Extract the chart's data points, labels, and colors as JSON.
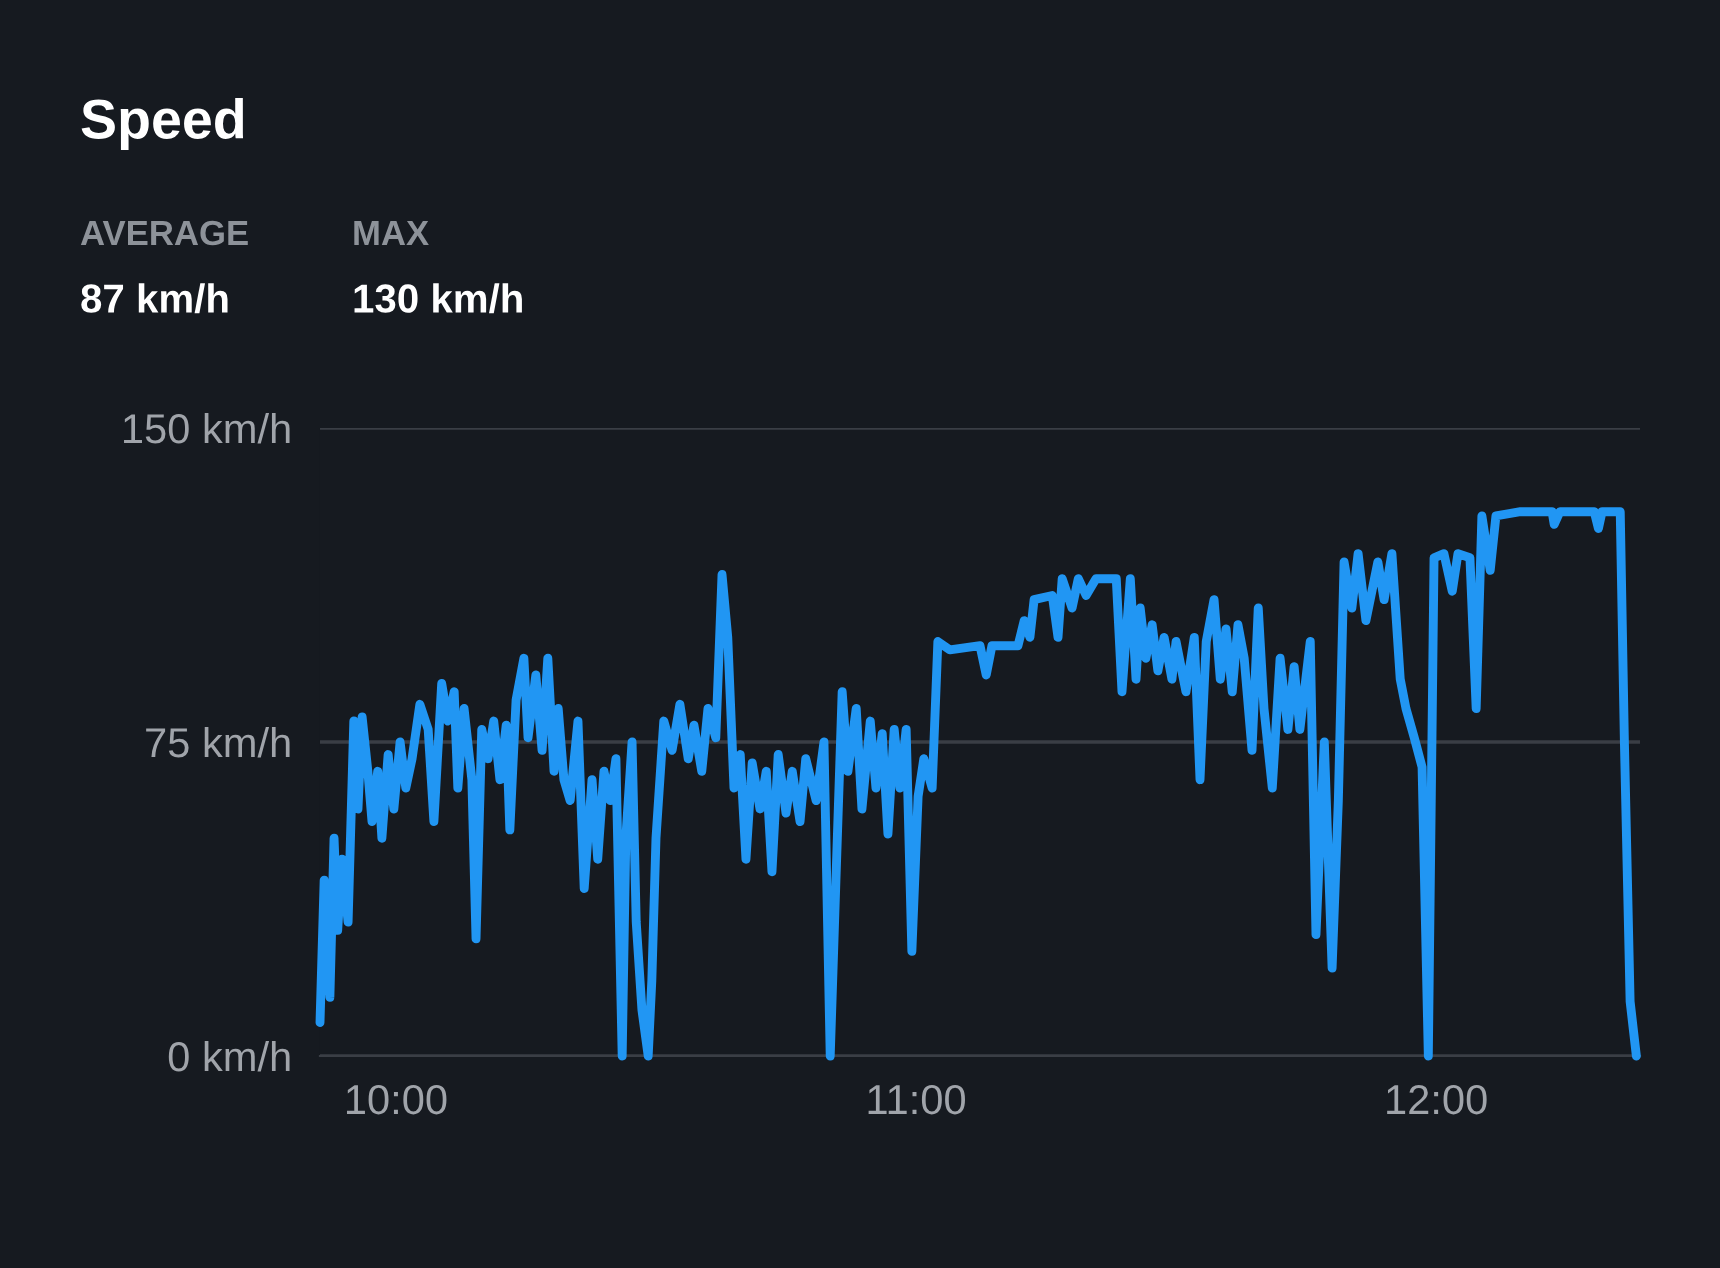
{
  "chart_data": {
    "type": "line",
    "title": "Speed",
    "annotations": [
      "AVERAGE",
      "87 km/h",
      "MAX",
      "130 km/h"
    ],
    "x": [
      9.854,
      9.862,
      9.873,
      9.881,
      9.888,
      9.896,
      9.908,
      9.919,
      9.927,
      9.935,
      9.946,
      9.954,
      9.965,
      9.973,
      9.985,
      9.996,
      10.008,
      10.019,
      10.031,
      10.046,
      10.062,
      10.073,
      10.088,
      10.1,
      10.112,
      10.119,
      10.131,
      10.146,
      10.154,
      10.165,
      10.177,
      10.188,
      10.2,
      10.212,
      10.219,
      10.231,
      10.246,
      10.254,
      10.269,
      10.281,
      10.292,
      10.304,
      10.312,
      10.323,
      10.335,
      10.35,
      10.362,
      10.377,
      10.388,
      10.4,
      10.412,
      10.423,
      10.435,
      10.442,
      10.454,
      10.462,
      10.473,
      10.485,
      10.492,
      10.5,
      10.515,
      10.531,
      10.546,
      10.562,
      10.573,
      10.588,
      10.6,
      10.615,
      10.627,
      10.638,
      10.65,
      10.662,
      10.673,
      10.685,
      10.7,
      10.712,
      10.723,
      10.735,
      10.75,
      10.762,
      10.777,
      10.788,
      10.808,
      10.823,
      10.835,
      10.846,
      10.858,
      10.869,
      10.885,
      10.896,
      10.912,
      10.923,
      10.935,
      10.946,
      10.958,
      10.969,
      10.981,
      10.992,
      11.004,
      11.015,
      11.031,
      11.042,
      11.065,
      11.123,
      11.135,
      11.146,
      11.196,
      11.208,
      11.219,
      11.227,
      11.262,
      11.273,
      11.281,
      11.3,
      11.312,
      11.327,
      11.346,
      11.385,
      11.396,
      11.412,
      11.423,
      11.431,
      11.442,
      11.454,
      11.465,
      11.477,
      11.492,
      11.5,
      11.519,
      11.535,
      11.546,
      11.558,
      11.573,
      11.585,
      11.596,
      11.608,
      11.619,
      11.631,
      11.646,
      11.658,
      11.669,
      11.685,
      11.7,
      11.715,
      11.727,
      11.738,
      11.758,
      11.769,
      11.785,
      11.8,
      11.812,
      11.823,
      11.838,
      11.85,
      11.865,
      11.888,
      11.9,
      11.915,
      11.931,
      11.942,
      11.958,
      11.973,
      11.985,
      11.996,
      12.015,
      12.031,
      12.042,
      12.065,
      12.077,
      12.088,
      12.104,
      12.115,
      12.162,
      12.223,
      12.227,
      12.238,
      12.304,
      12.312,
      12.319,
      12.354,
      12.362,
      12.373,
      12.385
    ],
    "series": [
      {
        "color": "#2196f3",
        "values": [
          8,
          42,
          14,
          52,
          30,
          47,
          32,
          80,
          59,
          81,
          68,
          56,
          68,
          52,
          72,
          59,
          75,
          64,
          71,
          84,
          78,
          56,
          89,
          80,
          87,
          64,
          83,
          66,
          28,
          78,
          71,
          80,
          66,
          79,
          54,
          85,
          95,
          76,
          91,
          73,
          95,
          68,
          83,
          66,
          61,
          80,
          40,
          66,
          47,
          68,
          61,
          71,
          0,
          52,
          75,
          32,
          11,
          0,
          18,
          52,
          80,
          73,
          84,
          71,
          79,
          68,
          83,
          76,
          115,
          100,
          64,
          72,
          47,
          70,
          59,
          68,
          44,
          72,
          58,
          68,
          56,
          71,
          61,
          75,
          0,
          42,
          87,
          68,
          83,
          59,
          80,
          64,
          77,
          53,
          78,
          64,
          78,
          25,
          62,
          71,
          64,
          99,
          97,
          98,
          91,
          98,
          98,
          104,
          100,
          109,
          110,
          100,
          114,
          107,
          114,
          110,
          114,
          114,
          87,
          114,
          90,
          107,
          95,
          103,
          92,
          100,
          90,
          99,
          87,
          100,
          66,
          99,
          109,
          90,
          102,
          87,
          103,
          95,
          73,
          107,
          83,
          64,
          95,
          78,
          93,
          78,
          99,
          29,
          75,
          21,
          61,
          118,
          107,
          120,
          104,
          118,
          109,
          120,
          90,
          83,
          76,
          69,
          0,
          119,
          120,
          111,
          120,
          119,
          83,
          129,
          116,
          129,
          130,
          130,
          127,
          130,
          130,
          126,
          130,
          130,
          75,
          13,
          0
        ]
      }
    ],
    "xlim": [
      9.854,
      12.392
    ],
    "ylim": [
      0,
      150
    ],
    "xticks": [
      {
        "value": 10,
        "label": "10:00"
      },
      {
        "value": 11,
        "label": "11:00"
      },
      {
        "value": 12,
        "label": "12:00"
      }
    ],
    "yticks": [
      {
        "value": 0,
        "label": "0 km/h"
      },
      {
        "value": 75,
        "label": "75 km/h"
      },
      {
        "value": 150,
        "label": "150 km/h"
      }
    ],
    "grid": "y",
    "legend": false,
    "marker": "none",
    "line_style": "solid"
  }
}
